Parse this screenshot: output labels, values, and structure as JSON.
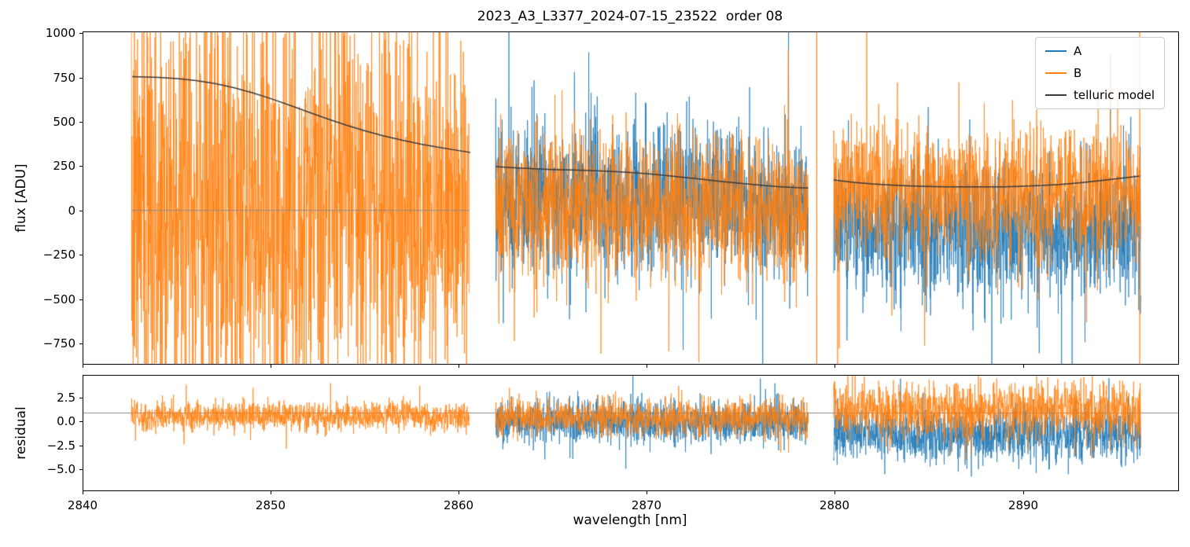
{
  "figure": {
    "title": "2023_A3_L3377_2024-07-15_23522  order 08",
    "xlabel": "wavelength [nm]",
    "flux_ylabel": "flux [ADU]",
    "residual_ylabel": "residual"
  },
  "colors": {
    "A": "#1f77b4",
    "B": "#ff7f0e",
    "model": "#3a3a3a",
    "axhline": "#8a8a8a"
  },
  "legend": {
    "items": [
      {
        "label": "A",
        "color": "#1f77b4"
      },
      {
        "label": "B",
        "color": "#ff7f0e"
      },
      {
        "label": "telluric model",
        "color": "#3a3a3a"
      }
    ]
  },
  "chart_data": [
    {
      "type": "line",
      "title": "2023_A3_L3377_2024-07-15_23522  order 08",
      "ylabel": "flux [ADU]",
      "xlabel": "wavelength [nm]",
      "xlim": [
        2840,
        2898.3
      ],
      "ylim": [
        -870,
        1010
      ],
      "xticks": [
        2840,
        2850,
        2860,
        2870,
        2880,
        2890
      ],
      "yticks": [
        1000,
        750,
        500,
        250,
        0,
        -250,
        -500,
        -750
      ],
      "ytick_labels": [
        "1000",
        "750",
        "500",
        "250",
        "0",
        "−250",
        "−500",
        "−750"
      ],
      "legend": [
        "A",
        "B",
        "telluric model"
      ],
      "grid": false,
      "legend_position": "upper right",
      "segments": [
        {
          "x_start": 2842.55,
          "x_end": 2860.55,
          "noise": [
            {
              "series": "B",
              "mean": 0,
              "std_start": 660,
              "std_end": 500
            }
          ],
          "baseline_y": 0,
          "model": [
            [
              2842.6,
              758
            ],
            [
              2844,
              754
            ],
            [
              2845,
              747
            ],
            [
              2846,
              736
            ],
            [
              2847,
              719
            ],
            [
              2848,
              696
            ],
            [
              2849,
              667
            ],
            [
              2850,
              633
            ],
            [
              2851,
              596
            ],
            [
              2852,
              557
            ],
            [
              2853,
              519
            ],
            [
              2854,
              483
            ],
            [
              2855,
              451
            ],
            [
              2856,
              422
            ],
            [
              2857,
              397
            ],
            [
              2858,
              375
            ],
            [
              2859,
              356
            ],
            [
              2860,
              339
            ],
            [
              2860.6,
              328
            ]
          ]
        },
        {
          "x_start": 2861.95,
          "x_end": 2878.6,
          "noise": [
            {
              "series": "A",
              "mean": 60,
              "std_start": 210,
              "std_end": 200
            },
            {
              "series": "B",
              "mean": 20,
              "std_start": 215,
              "std_end": 205
            }
          ],
          "model": [
            [
              2861.95,
              248
            ],
            [
              2863,
              241
            ],
            [
              2864,
              236
            ],
            [
              2865,
              232
            ],
            [
              2866,
              229
            ],
            [
              2867,
              226
            ],
            [
              2868,
              222
            ],
            [
              2869,
              216
            ],
            [
              2870,
              208
            ],
            [
              2871,
              198
            ],
            [
              2872,
              187
            ],
            [
              2873,
              176
            ],
            [
              2874,
              164
            ],
            [
              2875,
              153
            ],
            [
              2876,
              143
            ],
            [
              2877,
              135
            ],
            [
              2878,
              129
            ],
            [
              2878.6,
              127
            ]
          ]
        },
        {
          "x_start": 2879.95,
          "x_end": 2896.3,
          "noise": [
            {
              "series": "A",
              "mean": -120,
              "std_start": 180,
              "std_end": 200
            },
            {
              "series": "B",
              "mean": 110,
              "std_start": 190,
              "std_end": 190
            }
          ],
          "model": [
            [
              2879.95,
              172
            ],
            [
              2881,
              159
            ],
            [
              2882,
              150
            ],
            [
              2883,
              144
            ],
            [
              2884,
              139
            ],
            [
              2885,
              136
            ],
            [
              2886,
              134
            ],
            [
              2887,
              133
            ],
            [
              2888,
              133
            ],
            [
              2889,
              134
            ],
            [
              2890,
              137
            ],
            [
              2891,
              141
            ],
            [
              2892,
              147
            ],
            [
              2893,
              156
            ],
            [
              2894,
              167
            ],
            [
              2895,
              179
            ],
            [
              2896,
              191
            ],
            [
              2896.3,
              195
            ]
          ]
        }
      ],
      "vertical_spikes": {
        "series": "B",
        "x": [
          2879.05,
          2896.25
        ]
      }
    },
    {
      "type": "line",
      "ylabel": "residual",
      "xlabel": "wavelength [nm]",
      "xlim": [
        2840,
        2898.3
      ],
      "ylim": [
        -7.3,
        4.9
      ],
      "xticks": [
        2840,
        2850,
        2860,
        2870,
        2880,
        2890
      ],
      "xtick_labels": [
        "2840",
        "2850",
        "2860",
        "2870",
        "2880",
        "2890"
      ],
      "yticks": [
        2.5,
        0,
        -2.5,
        -5
      ],
      "ytick_labels": [
        "2.5",
        "0.0",
        "−2.5",
        "−5.0"
      ],
      "axhline_y": 1.0,
      "grid": false,
      "segments": [
        {
          "x_start": 2842.55,
          "x_end": 2860.55,
          "noise": [
            {
              "series": "B",
              "mean": 0.55,
              "std_start": 0.75,
              "std_end": 0.75
            }
          ]
        },
        {
          "x_start": 2861.95,
          "x_end": 2878.6,
          "noise": [
            {
              "series": "A",
              "mean": 0.0,
              "std_start": 1.15,
              "std_end": 1.15
            },
            {
              "series": "B",
              "mean": 0.45,
              "std_start": 0.95,
              "std_end": 0.95
            }
          ]
        },
        {
          "x_start": 2879.95,
          "x_end": 2896.3,
          "noise": [
            {
              "series": "A",
              "mean": -1.4,
              "std_start": 1.45,
              "std_end": 1.45
            },
            {
              "series": "B",
              "mean": 1.3,
              "std_start": 1.5,
              "std_end": 1.5
            }
          ]
        }
      ]
    }
  ]
}
